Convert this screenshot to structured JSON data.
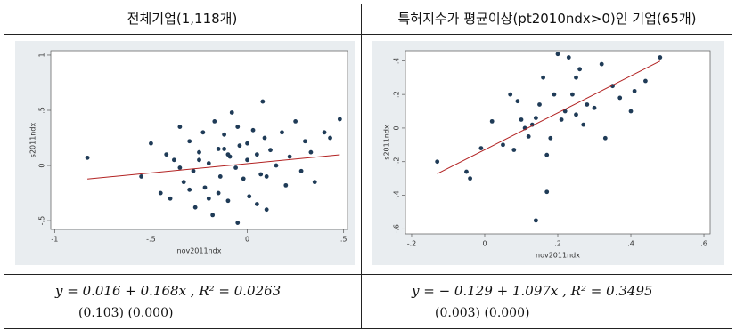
{
  "table": {
    "headers": [
      "전체기업(1,118개)",
      "특허지수가 평균이상(pt2010ndx>0)인 기업(65개)"
    ],
    "equations": [
      "y = 0.016 + 0.168x  ,  R² = 0.0263",
      "y = − 0.129 + 1.097x  ,  R² = 0.3495"
    ],
    "std_errors": [
      "(0.103)  (0.000)",
      "(0.003)  (0.000)"
    ]
  },
  "chart_data": [
    {
      "type": "scatter",
      "xlabel": "nov2011ndx",
      "ylabel": "s2011ndx",
      "color": "#1f3b57",
      "fit_color": "#b22222",
      "xlim": [
        -1.02,
        0.52
      ],
      "ylim": [
        -0.58,
        1.04
      ],
      "xticks": [
        -1,
        {
          "value": -0.5,
          "label": "-.5"
        },
        0,
        {
          "value": 0.5,
          "label": ".5"
        }
      ],
      "yticks": [
        {
          "value": -0.5,
          "label": "-.5"
        },
        0,
        {
          "value": 0.5,
          "label": ".5"
        },
        1
      ],
      "x": [
        -0.83,
        -0.55,
        -0.5,
        -0.45,
        -0.42,
        -0.4,
        -0.38,
        -0.35,
        -0.33,
        -0.3,
        -0.28,
        -0.27,
        -0.25,
        -0.23,
        -0.22,
        -0.2,
        -0.18,
        -0.17,
        -0.15,
        -0.14,
        -0.12,
        -0.1,
        -0.09,
        -0.08,
        -0.06,
        -0.05,
        -0.04,
        -0.02,
        0,
        0.01,
        0.03,
        0.05,
        0.07,
        0.09,
        0.1,
        0.12,
        0.15,
        0.18,
        0.2,
        0.22,
        0.25,
        0.28,
        0.3,
        0.33,
        0.35,
        0.4,
        0.43,
        0.48,
        -0.3,
        -0.2,
        -0.1,
        0,
        0.1,
        -0.25,
        -0.15,
        -0.05,
        0.05,
        -0.35,
        -0.12,
        0.08
      ],
      "values": [
        0.07,
        -0.1,
        0.2,
        -0.25,
        0.1,
        -0.3,
        0.05,
        0.35,
        -0.15,
        0.22,
        -0.05,
        -0.38,
        0.12,
        0.3,
        -0.2,
        0.02,
        -0.45,
        0.4,
        0.15,
        -0.1,
        0.28,
        -0.32,
        0.08,
        0.48,
        -0.02,
        -0.52,
        0.18,
        -0.12,
        0.05,
        -0.28,
        0.32,
        0.1,
        -0.08,
        0.25,
        -0.4,
        0.14,
        0,
        0.3,
        -0.18,
        0.08,
        0.4,
        -0.05,
        0.22,
        0.12,
        -0.15,
        0.3,
        0.25,
        0.42,
        -0.22,
        -0.3,
        0.1,
        0.2,
        -0.1,
        0.05,
        -0.25,
        0.35,
        -0.35,
        -0.02,
        0.15,
        0.58
      ],
      "fit_line": {
        "x": [
          -0.83,
          0.48
        ],
        "y": [
          -0.123,
          0.097
        ]
      }
    },
    {
      "type": "scatter",
      "xlabel": "nov2011ndx",
      "ylabel": "s2011ndx",
      "color": "#1f3b57",
      "fit_color": "#b22222",
      "xlim": [
        -0.217,
        0.617
      ],
      "ylim": [
        -0.63,
        0.46
      ],
      "xticks": [
        {
          "value": -0.2,
          "label": "-.2"
        },
        0,
        {
          "value": 0.2,
          "label": ".2"
        },
        {
          "value": 0.4,
          "label": ".4"
        },
        {
          "value": 0.6,
          "label": ".6"
        }
      ],
      "yticks": [
        {
          "value": -0.6,
          "label": "-.6"
        },
        {
          "value": -0.4,
          "label": "-.4"
        },
        {
          "value": -0.2,
          "label": "-.2"
        },
        0,
        {
          "value": 0.2,
          "label": ".2"
        },
        {
          "value": 0.4,
          "label": ".4"
        }
      ],
      "x": [
        -0.13,
        -0.05,
        -0.04,
        -0.01,
        0.02,
        0.05,
        0.07,
        0.08,
        0.1,
        0.11,
        0.12,
        0.13,
        0.14,
        0.15,
        0.16,
        0.17,
        0.18,
        0.19,
        0.2,
        0.21,
        0.22,
        0.23,
        0.24,
        0.25,
        0.26,
        0.27,
        0.28,
        0.3,
        0.32,
        0.33,
        0.35,
        0.37,
        0.4,
        0.41,
        0.44,
        0.48,
        0.14,
        0.17,
        0.09,
        0.25
      ],
      "values": [
        -0.2,
        -0.26,
        -0.3,
        -0.12,
        0.04,
        -0.1,
        0.2,
        -0.13,
        0.05,
        0,
        -0.05,
        0.02,
        -0.55,
        0.14,
        0.3,
        -0.38,
        -0.06,
        0.2,
        0.44,
        0.05,
        0.1,
        0.42,
        0.2,
        0.08,
        0.35,
        0.02,
        0.14,
        0.12,
        0.38,
        -0.06,
        0.25,
        0.18,
        0.1,
        0.22,
        0.28,
        0.42,
        0.06,
        -0.16,
        0.16,
        0.3
      ],
      "fit_line": {
        "x": [
          -0.13,
          0.48
        ],
        "y": [
          -0.272,
          0.398
        ]
      }
    }
  ]
}
